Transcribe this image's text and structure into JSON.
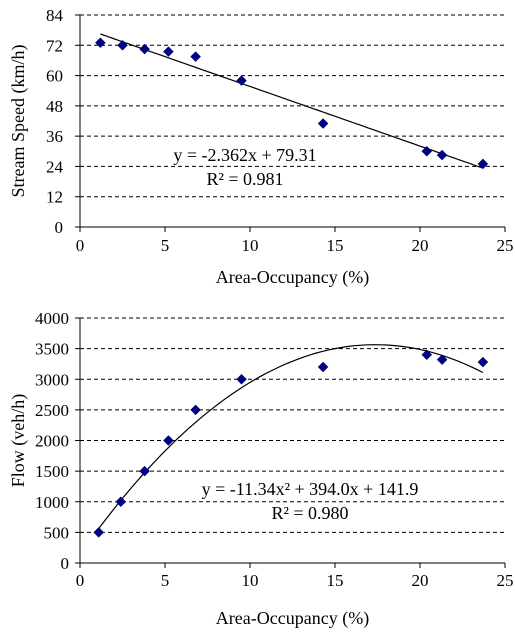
{
  "chart_data": [
    {
      "type": "scatter",
      "title": "",
      "xlabel": "Area-Occupancy (%)",
      "ylabel": "Stream Speed (km/h)",
      "xlim": [
        0,
        25
      ],
      "ylim": [
        0,
        84
      ],
      "x_ticks": [
        0,
        5,
        10,
        15,
        20,
        25
      ],
      "y_ticks": [
        0,
        12,
        24,
        36,
        48,
        60,
        72,
        84
      ],
      "grid": "horizontal dashed",
      "legend": "none",
      "marker_color": "#000080",
      "series": [
        {
          "x": [
            1.2,
            2.5,
            3.8,
            5.2,
            6.8,
            9.5,
            14.3,
            20.4,
            21.3,
            23.7
          ],
          "y": [
            73,
            72,
            70.5,
            69.5,
            67.5,
            58,
            41,
            30,
            28.5,
            25
          ]
        }
      ],
      "trendline": {
        "kind": "linear",
        "coefficients": [
          -2.362,
          79.31
        ],
        "x_range": [
          1.2,
          23.7
        ]
      },
      "annotation": {
        "equation": "y = -2.362x + 79.31",
        "r2": "R² = 0.981"
      }
    },
    {
      "type": "scatter",
      "title": "",
      "xlabel": "Area-Occupancy (%)",
      "ylabel": "Flow  (veh/h)",
      "xlim": [
        0,
        25
      ],
      "ylim": [
        0,
        4000
      ],
      "x_ticks": [
        0,
        5,
        10,
        15,
        20,
        25
      ],
      "y_ticks": [
        0,
        500,
        1000,
        1500,
        2000,
        2500,
        3000,
        3500,
        4000
      ],
      "grid": "horizontal dashed",
      "legend": "none",
      "marker_color": "#000080",
      "series": [
        {
          "x": [
            1.1,
            2.4,
            3.8,
            5.2,
            6.8,
            9.5,
            14.3,
            20.4,
            21.3,
            23.7
          ],
          "y": [
            500,
            1000,
            1500,
            2000,
            2500,
            3000,
            3200,
            3400,
            3320,
            3280
          ]
        }
      ],
      "trendline": {
        "kind": "polynomial",
        "coefficients": [
          -11.34,
          394.0,
          141.9
        ],
        "x_range": [
          1.1,
          23.7
        ]
      },
      "annotation": {
        "equation": "y = -11.34x² + 394.0x + 141.9",
        "r2": "R² = 0.980"
      }
    }
  ]
}
